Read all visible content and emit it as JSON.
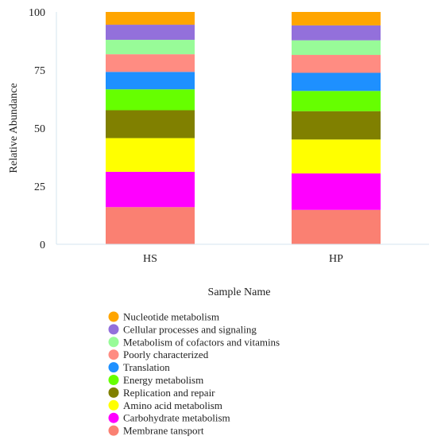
{
  "chart_data": {
    "type": "bar",
    "stacked": true,
    "title": "",
    "xlabel": "Sample Name",
    "ylabel": "Relative Abundance",
    "ylim": [
      0,
      100
    ],
    "yticks": [
      0,
      25,
      50,
      75,
      100
    ],
    "grid": false,
    "legend_position": "bottom",
    "categories": [
      "HS",
      "HP"
    ],
    "series": [
      {
        "name": "Membrane tansport",
        "color": "#FA8072",
        "values": [
          16.0,
          14.8
        ]
      },
      {
        "name": "Carbohydrate metabolism",
        "color": "#FF00FF",
        "values": [
          15.2,
          15.7
        ]
      },
      {
        "name": "Amino acid metabolism",
        "color": "#FFFF00",
        "values": [
          14.5,
          14.6
        ]
      },
      {
        "name": "Replication and repair",
        "color": "#808000",
        "values": [
          12.0,
          12.2
        ]
      },
      {
        "name": "Energy metabolism",
        "color": "#66FF00",
        "values": [
          9.0,
          8.7
        ]
      },
      {
        "name": "Translation",
        "color": "#1E90FF",
        "values": [
          7.5,
          7.8
        ]
      },
      {
        "name": "Poorly characterized",
        "color": "#FF8C82",
        "values": [
          7.6,
          7.7
        ]
      },
      {
        "name": "Metabolism of cofactors and vitamins",
        "color": "#98FB98",
        "values": [
          6.2,
          6.3
        ]
      },
      {
        "name": "Cellular processes and signaling",
        "color": "#9370DB",
        "values": [
          6.5,
          6.4
        ]
      },
      {
        "name": "Nucleotide metabolism",
        "color": "#FFA500",
        "values": [
          5.5,
          5.8
        ]
      }
    ]
  }
}
